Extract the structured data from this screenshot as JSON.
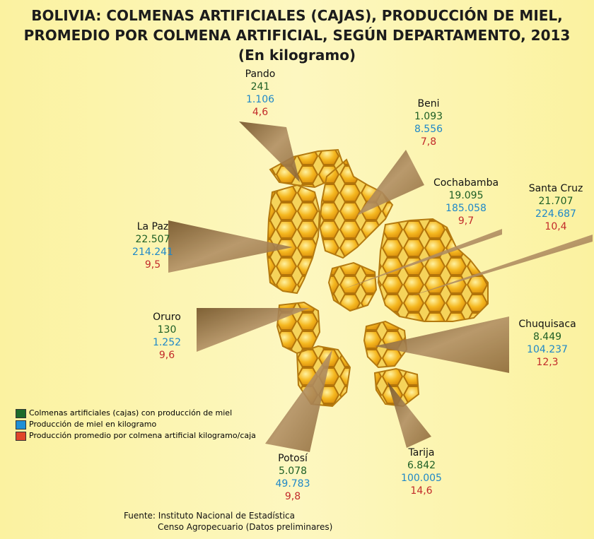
{
  "title": {
    "line1": "BOLIVIA: COLMENAS ARTIFICIALES (CAJAS), PRODUCCIÓN DE MIEL,",
    "line2": "PROMEDIO POR COLMENA ARTIFICIAL, SEGÚN DEPARTAMENTO, 2013",
    "line3": "(En kilogramo)"
  },
  "departments": {
    "pando": {
      "name": "Pando",
      "colmenas": "241",
      "produccion": "1.106",
      "promedio": "4,6"
    },
    "beni": {
      "name": "Beni",
      "colmenas": "1.093",
      "produccion": "8.556",
      "promedio": "7,8"
    },
    "cochabamba": {
      "name": "Cochabamba",
      "colmenas": "19.095",
      "produccion": "185.058",
      "promedio": "9,7"
    },
    "santa_cruz": {
      "name": "Santa Cruz",
      "colmenas": "21.707",
      "produccion": "224.687",
      "promedio": "10,4"
    },
    "la_paz": {
      "name": "La Paz",
      "colmenas": "22.507",
      "produccion": "214.241",
      "promedio": "9,5"
    },
    "oruro": {
      "name": "Oruro",
      "colmenas": "130",
      "produccion": "1.252",
      "promedio": "9,6"
    },
    "chuquisaca": {
      "name": "Chuquisaca",
      "colmenas": "8.449",
      "produccion": "104.237",
      "promedio": "12,3"
    },
    "potosi": {
      "name": "Potosí",
      "colmenas": "5.078",
      "produccion": "49.783",
      "promedio": "9,8"
    },
    "tarija": {
      "name": "Tarija",
      "colmenas": "6.842",
      "produccion": "100.005",
      "promedio": "14,6"
    }
  },
  "legend": {
    "colmenas": {
      "label": "Colmenas artificiales (cajas) con producción de miel",
      "color": "#1d6b2a"
    },
    "produccion": {
      "label": "Producción de miel en kilogramo",
      "color": "#1f8fd6"
    },
    "promedio": {
      "label": "Producción promedio por colmena artificial kilogramo/caja",
      "color": "#e0452a"
    }
  },
  "source": {
    "line1": "Fuente: Instituto Nacional de Estadística",
    "line2": "Censo Agropecuario (Datos preliminares)"
  }
}
